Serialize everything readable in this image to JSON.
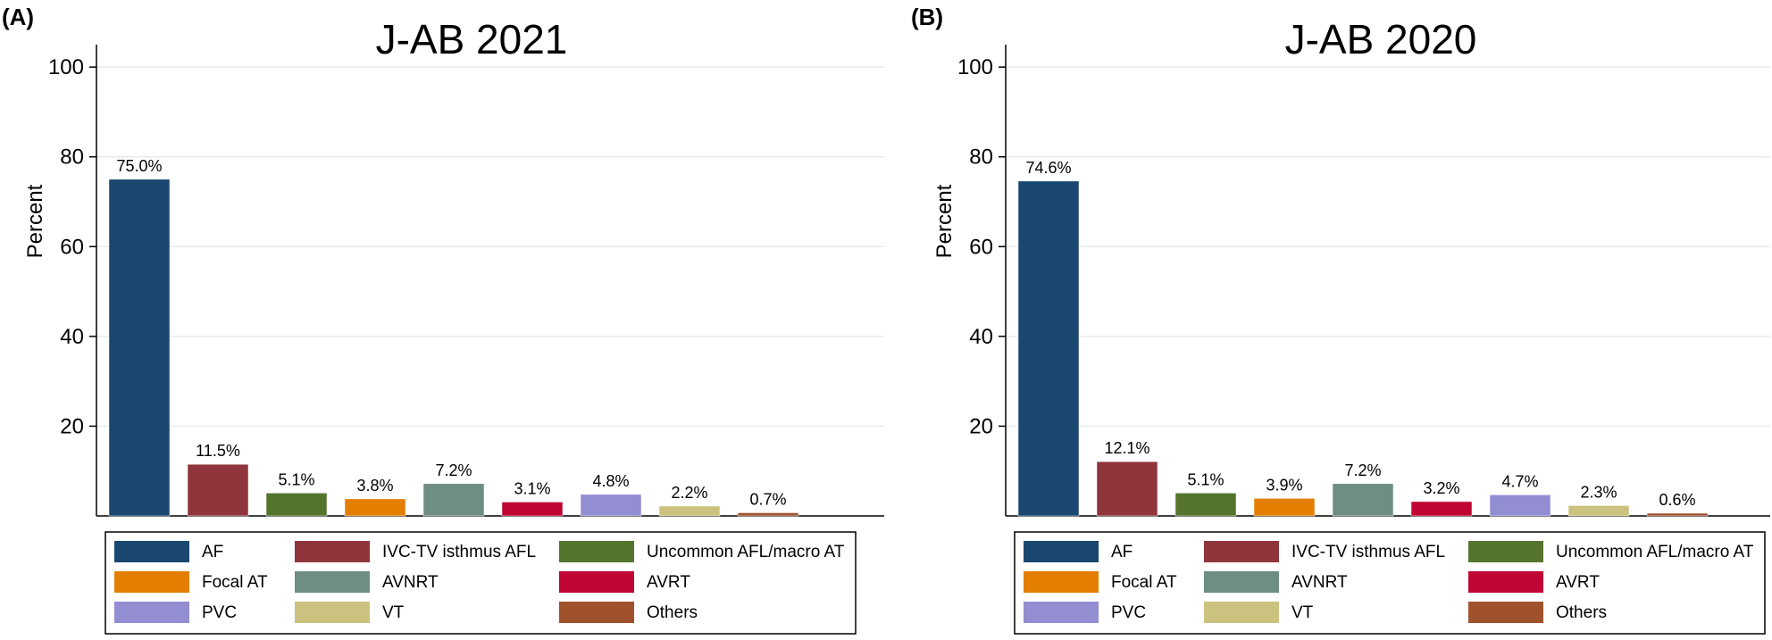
{
  "chart_data": [
    {
      "type": "bar",
      "panel_label": "(A)",
      "title": "J-AB 2021",
      "xlabel": "",
      "ylabel": "Percent",
      "ylim": [
        0,
        105
      ],
      "yticks": [
        20,
        40,
        60,
        80,
        100
      ],
      "grid": true,
      "legend_position": "bottom",
      "categories": [
        "AF",
        "IVC-TV isthmus AFL",
        "Uncommon AFL/macro AT",
        "Focal AT",
        "AVNRT",
        "AVRT",
        "PVC",
        "VT",
        "Others"
      ],
      "values": [
        75.0,
        11.5,
        5.1,
        3.8,
        7.2,
        3.1,
        4.8,
        2.2,
        0.7
      ],
      "data_labels": [
        "75.0%",
        "11.5%",
        "5.1%",
        "3.8%",
        "7.2%",
        "3.1%",
        "4.8%",
        "2.2%",
        "0.7%"
      ],
      "colors": [
        "#1a476f",
        "#90353b",
        "#55752f",
        "#e37e00",
        "#6e8e84",
        "#c10534",
        "#938dd2",
        "#cac27e",
        "#a0522d"
      ]
    },
    {
      "type": "bar",
      "panel_label": "(B)",
      "title": "J-AB 2020",
      "xlabel": "",
      "ylabel": "Percent",
      "ylim": [
        0,
        105
      ],
      "yticks": [
        20,
        40,
        60,
        80,
        100
      ],
      "grid": true,
      "legend_position": "bottom",
      "categories": [
        "AF",
        "IVC-TV isthmus AFL",
        "Uncommon AFL/macro AT",
        "Focal AT",
        "AVNRT",
        "AVRT",
        "PVC",
        "VT",
        "Others"
      ],
      "values": [
        74.6,
        12.1,
        5.1,
        3.9,
        7.2,
        3.2,
        4.7,
        2.3,
        0.6
      ],
      "data_labels": [
        "74.6%",
        "12.1%",
        "5.1%",
        "3.9%",
        "7.2%",
        "3.2%",
        "4.7%",
        "2.3%",
        "0.6%"
      ],
      "colors": [
        "#1a476f",
        "#90353b",
        "#55752f",
        "#e37e00",
        "#6e8e84",
        "#c10534",
        "#938dd2",
        "#cac27e",
        "#a0522d"
      ]
    }
  ]
}
